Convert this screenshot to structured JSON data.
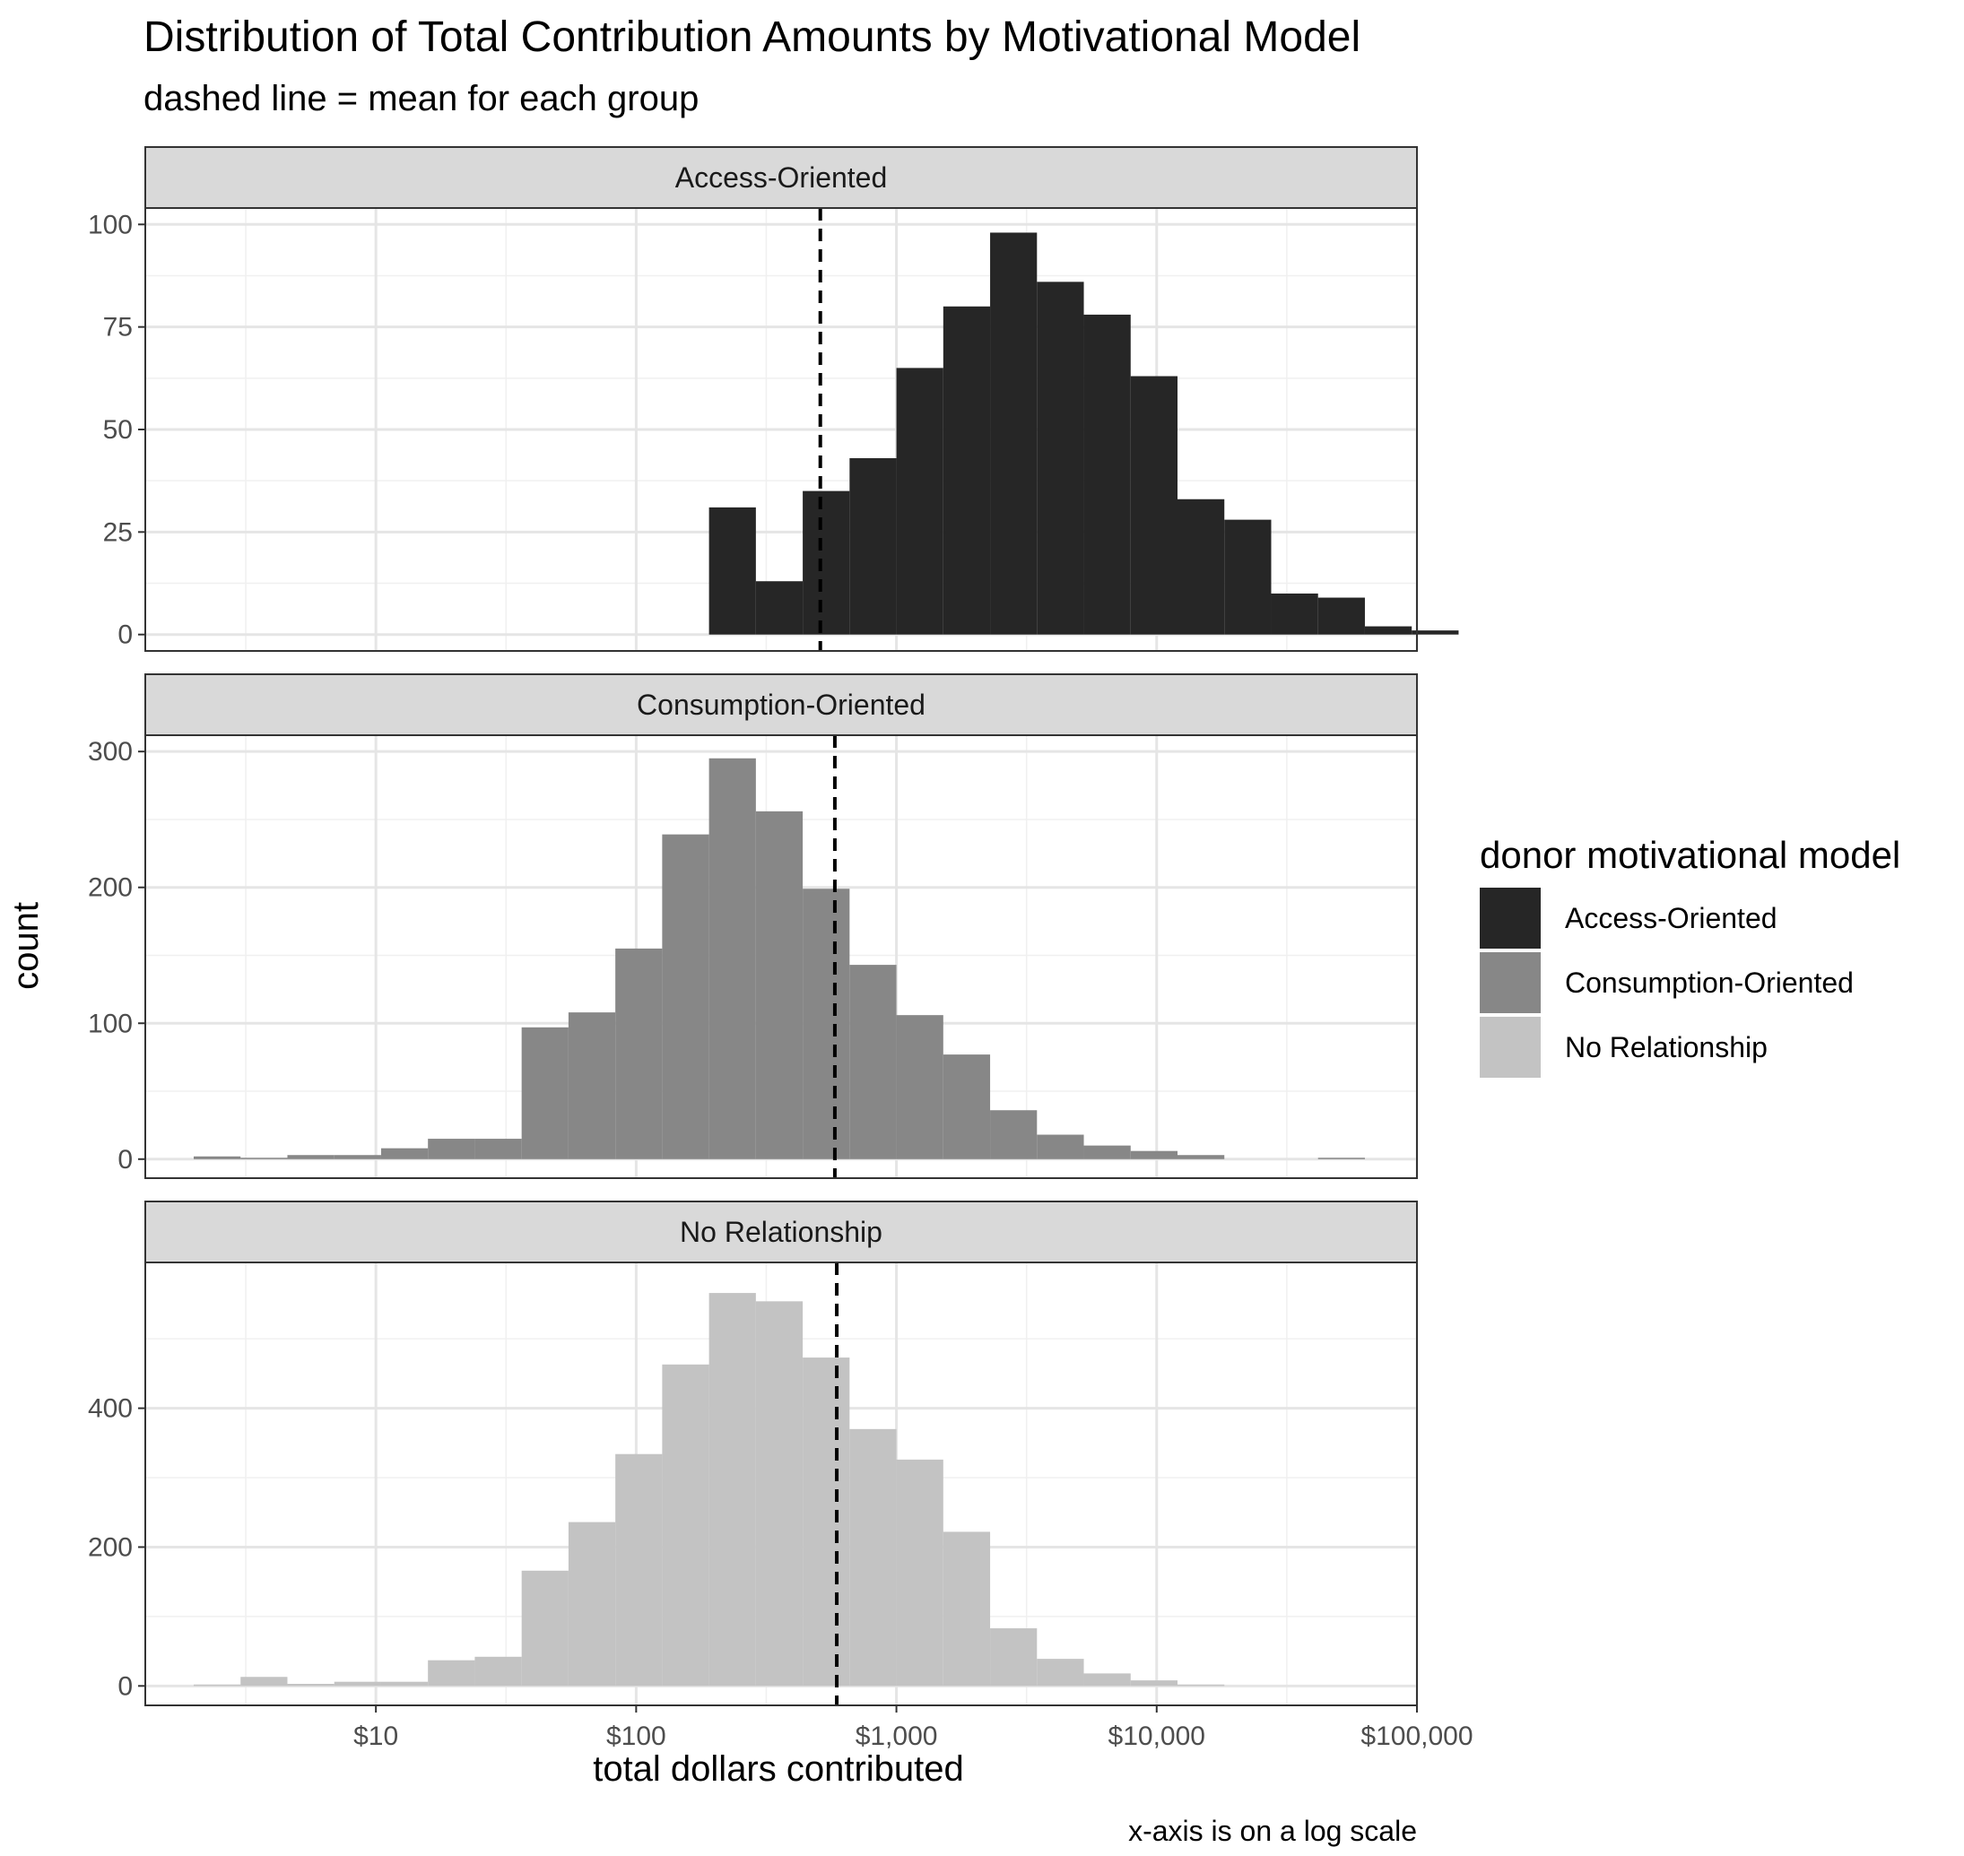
{
  "chart_data": {
    "type": "bar",
    "title": "Distribution of Total Contribution Amounts by Motivational Model",
    "subtitle": "dashed line = mean for each group",
    "xlabel": "total dollars contributed",
    "ylabel": "count",
    "caption": "x-axis is on a log scale",
    "x_scale": "log10",
    "xlim": [
      1.3,
      100000
    ],
    "x_ticks": [
      10,
      100,
      1000,
      10000,
      100000
    ],
    "x_tick_labels": [
      "$10",
      "$100",
      "$1,000",
      "$10,000",
      "$100,000"
    ],
    "bin_width_log10": 0.18,
    "bin_start_log10": 0.3,
    "grid": true,
    "legend": {
      "title": "donor motivational model",
      "placement": "right",
      "items": [
        {
          "label": "Access-Oriented",
          "color": "#262626"
        },
        {
          "label": "Consumption-Oriented",
          "color": "#878787"
        },
        {
          "label": "No Relationship",
          "color": "#c3c3c3"
        }
      ]
    },
    "panels": [
      {
        "name": "Access-Oriented",
        "color": "#262626",
        "ylim": [
          -4,
          104
        ],
        "y_ticks": [
          0,
          25,
          50,
          75,
          100
        ],
        "mean": 510,
        "counts": [
          0,
          0,
          0,
          0,
          0,
          0,
          0,
          0,
          0,
          0,
          0,
          31,
          13,
          35,
          43,
          65,
          80,
          98,
          86,
          78,
          63,
          33,
          28,
          10,
          9,
          2,
          1,
          0,
          0,
          0,
          0,
          0,
          0
        ]
      },
      {
        "name": "Consumption-Oriented",
        "color": "#878787",
        "ylim": [
          -14,
          312
        ],
        "y_ticks": [
          0,
          100,
          200,
          300
        ],
        "mean": 580,
        "counts": [
          2,
          1,
          3,
          3,
          8,
          15,
          15,
          97,
          108,
          155,
          239,
          295,
          256,
          199,
          143,
          106,
          77,
          36,
          18,
          10,
          6,
          3,
          0,
          0,
          1,
          0,
          0,
          0,
          0,
          0,
          0,
          0,
          0
        ]
      },
      {
        "name": "No Relationship",
        "color": "#c3c3c3",
        "ylim": [
          -28,
          610
        ],
        "y_ticks": [
          0,
          200,
          400
        ],
        "mean": 590,
        "counts": [
          2,
          13,
          3,
          6,
          6,
          37,
          42,
          166,
          236,
          334,
          463,
          566,
          554,
          473,
          370,
          326,
          222,
          83,
          39,
          18,
          8,
          2,
          0,
          0,
          0,
          0,
          0,
          0,
          0,
          0,
          0,
          0,
          0
        ]
      }
    ]
  }
}
